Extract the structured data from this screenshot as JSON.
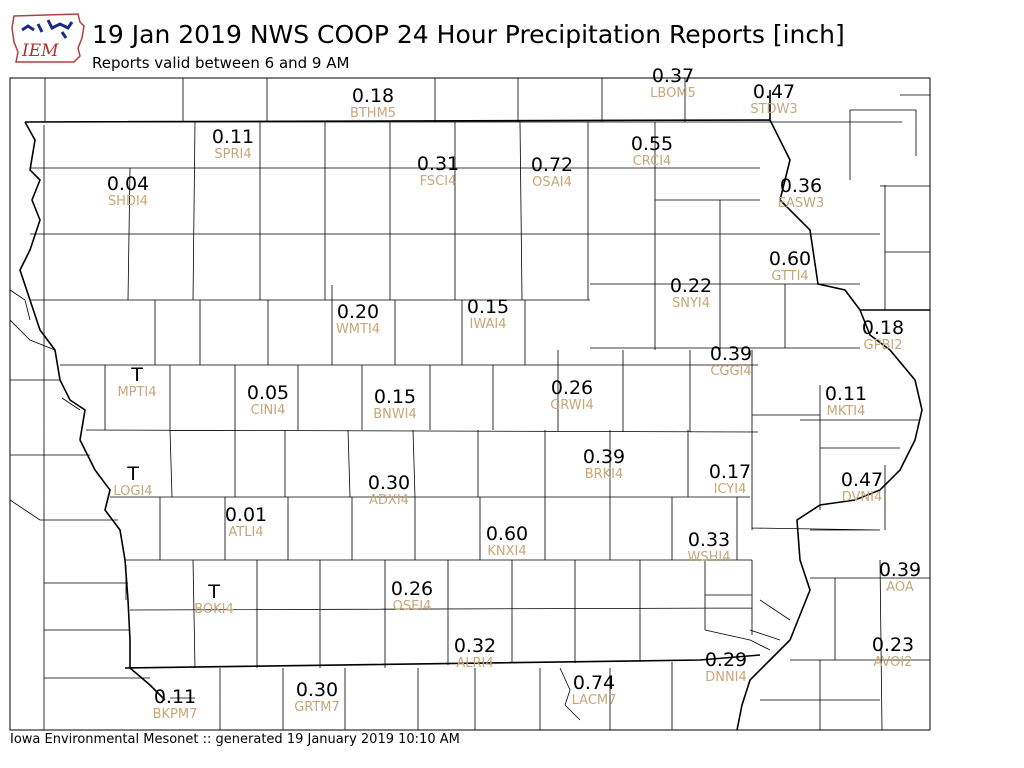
{
  "header": {
    "logo_text": "IEM",
    "title": "19 Jan 2019 NWS COOP 24 Hour Precipitation Reports [inch]",
    "subtitle": "Reports valid between 6 and 9 AM"
  },
  "footer": {
    "text": "Iowa Environmental Mesonet :: generated 19 January 2019 10:10 AM"
  },
  "colors": {
    "value_text": "#000000",
    "station_id": "#c8a678",
    "county_lines": "#000000"
  },
  "stations": [
    {
      "id": "BTHM5",
      "value": "0.18"
    },
    {
      "id": "LBOM5",
      "value": "0.37"
    },
    {
      "id": "STDW3",
      "value": "0.47"
    },
    {
      "id": "SPRI4",
      "value": "0.11"
    },
    {
      "id": "FSCI4",
      "value": "0.31"
    },
    {
      "id": "OSAI4",
      "value": "0.72"
    },
    {
      "id": "CRCI4",
      "value": "0.55"
    },
    {
      "id": "SHDI4",
      "value": "0.04"
    },
    {
      "id": "EASW3",
      "value": "0.36"
    },
    {
      "id": "GTTI4",
      "value": "0.60"
    },
    {
      "id": "SNYI4",
      "value": "0.22"
    },
    {
      "id": "WMTI4",
      "value": "0.20"
    },
    {
      "id": "IWAI4",
      "value": "0.15"
    },
    {
      "id": "GPBI2",
      "value": "0.18"
    },
    {
      "id": "CGGI4",
      "value": "0.39"
    },
    {
      "id": "MPTI4",
      "value": "T"
    },
    {
      "id": "CINI4",
      "value": "0.05"
    },
    {
      "id": "BNWI4",
      "value": "0.15"
    },
    {
      "id": "GRWI4",
      "value": "0.26"
    },
    {
      "id": "MKTI4",
      "value": "0.11"
    },
    {
      "id": "LOGI4",
      "value": "T"
    },
    {
      "id": "ADXI4",
      "value": "0.30"
    },
    {
      "id": "BRKI4",
      "value": "0.39"
    },
    {
      "id": "ICYI4",
      "value": "0.17"
    },
    {
      "id": "DVNI4",
      "value": "0.47"
    },
    {
      "id": "ATLI4",
      "value": "0.01"
    },
    {
      "id": "KNXI4",
      "value": "0.60"
    },
    {
      "id": "WSHI4",
      "value": "0.33"
    },
    {
      "id": "AOA",
      "value": "0.39"
    },
    {
      "id": "BOKI4",
      "value": "T"
    },
    {
      "id": "OSEI4",
      "value": "0.26"
    },
    {
      "id": "ALRI4",
      "value": "0.32"
    },
    {
      "id": "AVOI2",
      "value": "0.23"
    },
    {
      "id": "DNNI4",
      "value": "0.29"
    },
    {
      "id": "LACM7",
      "value": "0.74"
    },
    {
      "id": "BKPM7",
      "value": "0.11"
    },
    {
      "id": "GRTM7",
      "value": "0.30"
    }
  ]
}
